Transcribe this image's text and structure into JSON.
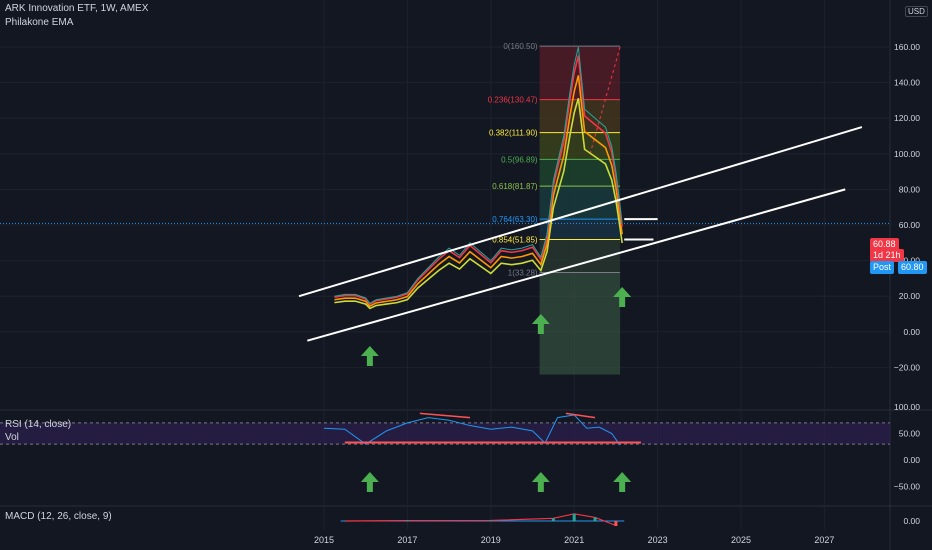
{
  "header": {
    "title": "ARK Innovation ETF, 1W, AMEX",
    "indicator": "Philakone EMA",
    "currency": "USD",
    "rsi_label": "RSI (14, close)",
    "vol_label": "Vol",
    "macd_label": "MACD (12, 26, close, 9)"
  },
  "badges": {
    "last_price": "60.88",
    "countdown": "1d 21h",
    "post_label": "Post",
    "post_price": "60.80"
  },
  "colors": {
    "background": "#131722",
    "price_line": "#26a69a",
    "ema_red": "#f23645",
    "ema_orange": "#ff9800",
    "ema_yellow": "#cddc39",
    "channel": "#ffffff",
    "arrow": "#4caf50",
    "rsi": "#2196f3",
    "rsi_band": "#2a1f4a",
    "support": "#ff5252"
  },
  "chart_data": [
    {
      "type": "line",
      "title": "ARK Innovation ETF, 1W, AMEX",
      "x": [
        "2015.25",
        "2015.5",
        "2015.75",
        "2016.0",
        "2016.1",
        "2016.25",
        "2016.5",
        "2016.75",
        "2017.0",
        "2017.25",
        "2017.5",
        "2017.75",
        "2018.0",
        "2018.25",
        "2018.5",
        "2018.75",
        "2019.0",
        "2019.25",
        "2019.5",
        "2019.75",
        "2020.0",
        "2020.2",
        "2020.35",
        "2020.5",
        "2020.75",
        "2020.9",
        "2021.0",
        "2021.1",
        "2021.25",
        "2021.5",
        "2021.75",
        "2021.9",
        "2022.0",
        "2022.08",
        "2022.15"
      ],
      "series": [
        {
          "values": [
            20,
            21,
            21,
            19,
            16,
            18,
            19,
            20,
            22,
            30,
            36,
            42,
            47,
            43,
            50,
            45,
            40,
            47,
            46,
            47,
            49,
            42,
            55,
            85,
            110,
            135,
            150,
            160,
            125,
            120,
            115,
            104,
            90,
            75,
            60.88
          ]
        }
      ],
      "x_ticks": [
        "2015",
        "2017",
        "2019",
        "2021",
        "2023",
        "2025",
        "2027"
      ],
      "y_ticks": [
        "160.00",
        "140.00",
        "120.00",
        "100.00",
        "80.00",
        "60.00",
        "40.00",
        "20.00",
        "0.00",
        "−20.00"
      ],
      "ylim": [
        -24,
        170
      ],
      "xlim": [
        2013.0,
        2029.2
      ],
      "fib_levels": [
        {
          "label": "0(160.50)",
          "value": 160.5,
          "color": "#787b86"
        },
        {
          "label": "0.236(130.47)",
          "value": 130.47,
          "color": "#f23645"
        },
        {
          "label": "0.382(111.90)",
          "value": 111.9,
          "color": "#ffeb3b"
        },
        {
          "label": "0.5(96.89)",
          "value": 96.89,
          "color": "#4caf50"
        },
        {
          "label": "0.618(81.87)",
          "value": 81.87,
          "color": "#8bc34a"
        },
        {
          "label": "0.764(63.30)",
          "value": 63.3,
          "color": "#2196f3"
        },
        {
          "label": "0.854(51.85)",
          "value": 51.85,
          "color": "#ffeb3b"
        },
        {
          "label": "1(33.28)",
          "value": 33.28,
          "color": "#787b86"
        }
      ],
      "legend_position": "none",
      "grid": true
    },
    {
      "type": "line",
      "title": "RSI (14, close)",
      "x": [
        "2015.0",
        "2015.5",
        "2016.0",
        "2016.5",
        "2017.0",
        "2017.5",
        "2018.0",
        "2018.5",
        "2019.0",
        "2019.5",
        "2020.0",
        "2020.3",
        "2020.6",
        "2021.0",
        "2021.3",
        "2021.6",
        "2021.9",
        "2022.1"
      ],
      "series": [
        {
          "values": [
            60,
            58,
            30,
            55,
            70,
            80,
            75,
            65,
            58,
            62,
            55,
            32,
            80,
            85,
            60,
            62,
            50,
            28
          ]
        }
      ],
      "y_ticks": [
        "100.00",
        "50.00",
        "0.00",
        "−50.00"
      ],
      "ylim": [
        -55,
        110
      ],
      "grid": true
    },
    {
      "type": "bar",
      "title": "MACD (12, 26, close, 9)",
      "x": [
        "2015.5",
        "2017.0",
        "2019.0",
        "2020.5",
        "2021.0",
        "2021.5",
        "2022.0"
      ],
      "series": [
        {
          "values": [
            0,
            0.5,
            0.6,
            3,
            8,
            4,
            -5
          ]
        }
      ],
      "y_ticks": [
        "0.00"
      ],
      "grid": true
    }
  ],
  "x_axis_labels": [
    "2015",
    "2017",
    "2019",
    "2021",
    "2023",
    "2025",
    "2027"
  ]
}
